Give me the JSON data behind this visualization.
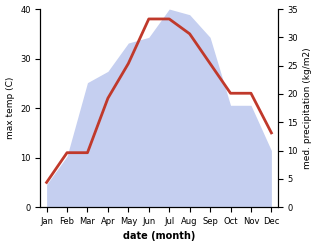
{
  "months": [
    "Jan",
    "Feb",
    "Mar",
    "Apr",
    "May",
    "Jun",
    "Jul",
    "Aug",
    "Sep",
    "Oct",
    "Nov",
    "Dec"
  ],
  "max_temp": [
    5,
    11,
    11,
    22,
    29,
    38,
    38,
    35,
    29,
    23,
    23,
    15
  ],
  "precipitation": [
    4,
    9,
    22,
    24,
    29,
    30,
    35,
    34,
    30,
    18,
    18,
    10
  ],
  "temp_color": "#c0392b",
  "precip_fill_color": "#c5cff0",
  "precip_edge_color": "#aab4e8",
  "temp_ylim": [
    0,
    40
  ],
  "precip_ylim": [
    0,
    35
  ],
  "temp_yticks": [
    0,
    10,
    20,
    30,
    40
  ],
  "precip_yticks": [
    0,
    5,
    10,
    15,
    20,
    25,
    30,
    35
  ],
  "ylabel_left": "max temp (C)",
  "ylabel_right": "med. precipitation (kg/m2)",
  "xlabel": "date (month)",
  "background_color": "#ffffff",
  "line_width": 2.0,
  "precip_scale_factor": 1.143
}
